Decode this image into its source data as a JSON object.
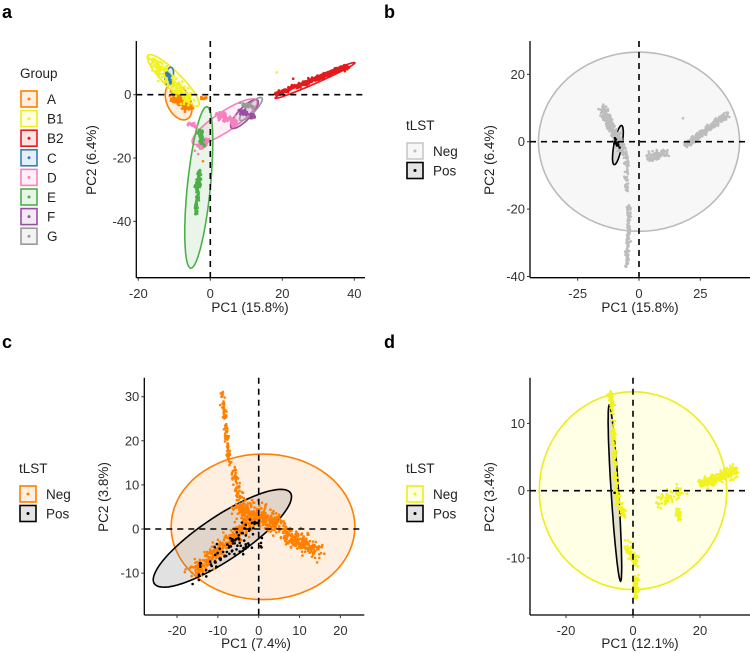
{
  "chart_data": [
    {
      "panel": "a",
      "type": "scatter",
      "xlabel": "PC1 (15.8%)",
      "ylabel": "PC2 (6.4%)",
      "xlim": [
        -20.6,
        43
      ],
      "ylim": [
        -57.7,
        17
      ],
      "xticks": [
        -20,
        0,
        20,
        40
      ],
      "yticks": [
        0,
        -20,
        -40
      ],
      "legend": {
        "title": "Group",
        "placement": "left"
      },
      "series": [
        {
          "name": "A",
          "color": "#ff7f00",
          "clouds": [
            {
              "from": [
                -10,
                0
              ],
              "to": [
                -6,
                -4
              ],
              "spread": 1.3,
              "n": 220
            },
            {
              "from": [
                -3,
                -1
              ],
              "to": [
                -1,
                -1
              ],
              "spread": 0.3,
              "n": 12
            },
            {
              "from": [
                -2,
                -21
              ],
              "to": [
                -2,
                -21
              ],
              "spread": 0.1,
              "n": 1
            }
          ],
          "ellipse": {
            "center": [
              -8.8,
              -2.2
            ],
            "a": 6,
            "b": 3.3,
            "angle": -70
          }
        },
        {
          "name": "B1",
          "color": "#ffff33",
          "clouds": [
            {
              "from": [
                -16,
                11
              ],
              "to": [
                -6,
                -2
              ],
              "spread": 1.4,
              "n": 220
            },
            {
              "from": [
                18.5,
                7
              ],
              "to": [
                18.5,
                7
              ],
              "spread": 0.1,
              "n": 1
            }
          ],
          "ellipse": {
            "center": [
              -10.3,
              4.5
            ],
            "a": 10.6,
            "b": 2.5,
            "angle": -49
          }
        },
        {
          "name": "B2",
          "color": "#e41a1c",
          "clouds": [
            {
              "from": [
                18,
                0
              ],
              "to": [
                38,
                9
              ],
              "spread": 0.6,
              "n": 320
            },
            {
              "from": [
                23,
                5
              ],
              "to": [
                23,
                5
              ],
              "spread": 0.1,
              "n": 1
            }
          ],
          "ellipse": {
            "center": [
              29.1,
              4.5
            ],
            "a": 12.4,
            "b": 0.9,
            "angle": 26.8
          }
        },
        {
          "name": "C",
          "color": "#377eb8",
          "clouds": [
            {
              "from": [
                -12,
                7
              ],
              "to": [
                -11,
                4
              ],
              "spread": 0.4,
              "n": 25
            }
          ],
          "ellipse": {
            "center": [
              -11.4,
              5.9
            ],
            "a": 2.8,
            "b": 1.1,
            "angle": 80
          }
        },
        {
          "name": "D",
          "color": "#f781bf",
          "clouds": [
            {
              "from": [
                -3,
                -17
              ],
              "to": [
                -1,
                -14
              ],
              "spread": 0.8,
              "n": 70
            },
            {
              "from": [
                2,
                -6
              ],
              "to": [
                7,
                -9
              ],
              "spread": 0.9,
              "n": 90
            },
            {
              "from": [
                -6,
                -9
              ],
              "to": [
                -4,
                -10
              ],
              "spread": 0.5,
              "n": 25
            }
          ],
          "ellipse": {
            "center": [
              4,
              -8.55
            ],
            "a": 11.2,
            "b": 3,
            "angle": 37.6
          }
        },
        {
          "name": "E",
          "color": "#4daf4a",
          "clouds": [
            {
              "from": [
                -3,
                -11
              ],
              "to": [
                -2,
                -16
              ],
              "spread": 0.5,
              "n": 50
            },
            {
              "from": [
                -3,
                -24
              ],
              "to": [
                -4,
                -38
              ],
              "spread": 0.5,
              "n": 140
            }
          ],
          "ellipse": {
            "center": [
              -3.2,
              -29.3
            ],
            "a": 25.6,
            "b": 3.2,
            "angle": 85
          }
        },
        {
          "name": "F",
          "color": "#984ea3",
          "clouds": [
            {
              "from": [
                8,
                -5
              ],
              "to": [
                12,
                -7
              ],
              "spread": 0.6,
              "n": 60
            }
          ],
          "ellipse": {
            "center": [
              9.5,
              -6.1
            ],
            "a": 5.7,
            "b": 1.8,
            "angle": 51
          }
        },
        {
          "name": "G",
          "color": "#999999",
          "clouds": [
            {
              "from": [
                9,
                -3
              ],
              "to": [
                12,
                -4
              ],
              "spread": 0.5,
              "n": 30
            },
            {
              "from": [
                8,
                0
              ],
              "to": [
                8,
                0
              ],
              "spread": 0.1,
              "n": 1
            }
          ],
          "ellipse": {
            "center": [
              11.3,
              -4.5
            ],
            "a": 4.65,
            "b": 1.3,
            "angle": 50
          }
        }
      ]
    },
    {
      "panel": "b",
      "type": "scatter",
      "xlabel": "PC1 (15.8%)",
      "ylabel": "PC2 (6.4%)",
      "xlim": [
        -44.4,
        45.2
      ],
      "ylim": [
        -40.2,
        29.9
      ],
      "xticks": [
        -25,
        0,
        25
      ],
      "yticks": [
        20,
        0,
        -20,
        -40
      ],
      "legend": {
        "title": "tLST",
        "placement": "left"
      },
      "series": [
        {
          "name": "Neg",
          "color": "#bdbdbd",
          "clouds": [
            {
              "from": [
                -15,
                10
              ],
              "to": [
                -6,
                -3
              ],
              "spread": 1.3,
              "n": 260
            },
            {
              "from": [
                -5,
                -4
              ],
              "to": [
                -5,
                -14
              ],
              "spread": 0.7,
              "n": 60
            },
            {
              "from": [
                -4,
                -19
              ],
              "to": [
                -5,
                -37
              ],
              "spread": 0.6,
              "n": 120
            },
            {
              "from": [
                4,
                -5
              ],
              "to": [
                11,
                -3
              ],
              "spread": 1.2,
              "n": 90
            },
            {
              "from": [
                19,
                -1
              ],
              "to": [
                36,
                8
              ],
              "spread": 0.8,
              "n": 280
            },
            {
              "from": [
                18,
                7
              ],
              "to": [
                18,
                7
              ],
              "spread": 0.1,
              "n": 1
            }
          ],
          "ellipse": {
            "center": [
              0,
              0
            ],
            "a": 41,
            "b": 26.6,
            "angle": 0
          }
        },
        {
          "name": "Pos",
          "color": "#000000",
          "clouds": [
            {
              "from": [
                -10,
                1
              ],
              "to": [
                -8,
                -2
              ],
              "spread": 0.6,
              "n": 12
            }
          ],
          "ellipse": {
            "center": [
              -8.6,
              -1
            ],
            "a": 6,
            "b": 1.6,
            "angle": 75
          }
        }
      ]
    },
    {
      "panel": "c",
      "type": "scatter",
      "xlabel": "PC1 (7.4%)",
      "ylabel": "PC2 (3.8%)",
      "xlim": [
        -28,
        25.9
      ],
      "ylim": [
        -19.7,
        34.3
      ],
      "xticks": [
        -20,
        -10,
        0,
        10,
        20
      ],
      "yticks": [
        30,
        20,
        10,
        0,
        -10
      ],
      "legend": {
        "title": "tLST",
        "placement": "left"
      },
      "series": [
        {
          "name": "Neg",
          "color": "#ff7f00",
          "clouds": [
            {
              "from": [
                -9,
                31
              ],
              "to": [
                -7,
                14
              ],
              "spread": 0.4,
              "n": 90
            },
            {
              "from": [
                -6,
                14
              ],
              "to": [
                -5,
                7
              ],
              "spread": 0.8,
              "n": 50
            },
            {
              "from": [
                -5,
                5
              ],
              "to": [
                5,
                1
              ],
              "spread": 1.8,
              "n": 320
            },
            {
              "from": [
                -16,
                -10
              ],
              "to": [
                -2,
                2
              ],
              "spread": 1.4,
              "n": 300
            },
            {
              "from": [
                6,
                -1
              ],
              "to": [
                15,
                -5
              ],
              "spread": 1.6,
              "n": 200
            }
          ],
          "ellipse": {
            "center": [
              1.05,
              0.5
            ],
            "a": 22.5,
            "b": 16.5,
            "angle": 0
          }
        },
        {
          "name": "Pos",
          "color": "#000000",
          "clouds": [
            {
              "from": [
                -16,
                -11
              ],
              "to": [
                0,
                2
              ],
              "spread": 1.5,
              "n": 70
            },
            {
              "from": [
                -6,
                -5
              ],
              "to": [
                1,
                -3
              ],
              "spread": 1,
              "n": 20
            }
          ],
          "ellipse": {
            "center": [
              -8.9,
              -2.1
            ],
            "a": 19.6,
            "b": 5.1,
            "angle": 31.4
          }
        }
      ]
    },
    {
      "panel": "d",
      "type": "scatter",
      "xlabel": "PC1 (12.1%)",
      "ylabel": "PC2 (3.4%)",
      "xlim": [
        -30.7,
        34.9
      ],
      "ylim": [
        -18.5,
        16.8
      ],
      "xticks": [
        -20,
        0,
        20
      ],
      "yticks": [
        10,
        0,
        -10
      ],
      "legend": {
        "title": "tLST",
        "placement": "left"
      },
      "series": [
        {
          "name": "Neg",
          "color": "#ffff33",
          "clouds": [
            {
              "from": [
                -7,
                14.5
              ],
              "to": [
                -6,
                12
              ],
              "spread": 0.5,
              "n": 60
            },
            {
              "from": [
                -6,
                10
              ],
              "to": [
                -5,
                0
              ],
              "spread": 0.5,
              "n": 90
            },
            {
              "from": [
                -5,
                0
              ],
              "to": [
                -3,
                -4
              ],
              "spread": 0.6,
              "n": 60
            },
            {
              "from": [
                -2,
                -8
              ],
              "to": [
                1,
                -11
              ],
              "spread": 0.8,
              "n": 60
            },
            {
              "from": [
                1,
                -13
              ],
              "to": [
                1,
                -16
              ],
              "spread": 0.7,
              "n": 60
            },
            {
              "from": [
                7,
                -2
              ],
              "to": [
                15,
                0
              ],
              "spread": 0.9,
              "n": 60
            },
            {
              "from": [
                13,
                -3
              ],
              "to": [
                14,
                -4
              ],
              "spread": 0.6,
              "n": 40
            },
            {
              "from": [
                20,
                1
              ],
              "to": [
                31,
                3
              ],
              "spread": 0.7,
              "n": 220
            }
          ],
          "ellipse": {
            "center": [
              0,
              0
            ],
            "a": 28,
            "b": 14.7,
            "angle": 0
          }
        },
        {
          "name": "Pos",
          "color": "#000000",
          "clouds": [
            {
              "from": [
                -5.5,
                -0.3
              ],
              "to": [
                -5.5,
                -0.3
              ],
              "spread": 0.05,
              "n": 1
            }
          ],
          "ellipse": {
            "center": [
              -5.4,
              -0.35
            ],
            "a": 13.2,
            "b": 1.1,
            "angle": 97.4
          }
        }
      ]
    }
  ]
}
